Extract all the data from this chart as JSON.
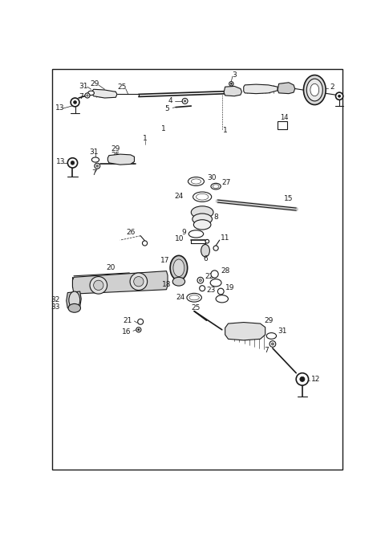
{
  "bg_color": "#ffffff",
  "line_color": "#1a1a1a",
  "label_color": "#000000",
  "fig_width": 4.8,
  "fig_height": 6.64,
  "dpi": 100
}
